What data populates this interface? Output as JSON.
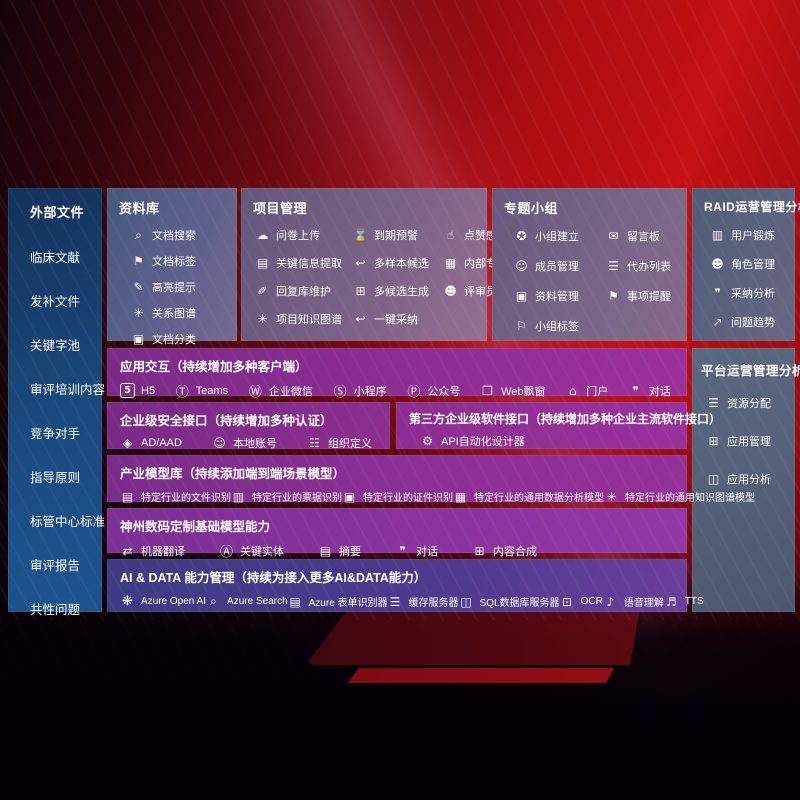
{
  "sidebar": {
    "title": "外部文件",
    "items": [
      "临床文献",
      "发补文件",
      "关键字池",
      "审评培训内容",
      "竞争对手",
      "指导原则",
      "标管中心标准",
      "审评报告",
      "共性问题"
    ]
  },
  "library": {
    "title": "资料库",
    "items": [
      {
        "glyph": "⌕",
        "label": "文档搜索"
      },
      {
        "glyph": "⚑",
        "label": "文档标签"
      },
      {
        "glyph": "✎",
        "label": "高亮提示"
      },
      {
        "glyph": "✳",
        "label": "关系图谱"
      },
      {
        "glyph": "▣",
        "label": "文档分类"
      }
    ]
  },
  "project": {
    "title": "项目管理",
    "items": [
      {
        "glyph": "☁",
        "label": "问卷上传"
      },
      {
        "glyph": "⌛",
        "label": "到期预警"
      },
      {
        "glyph": "☝",
        "label": "点赞感谢"
      },
      {
        "glyph": "▤",
        "label": "关键信息提取"
      },
      {
        "glyph": "↩",
        "label": "多样本候选"
      },
      {
        "glyph": "▦",
        "label": "内部专家排名"
      },
      {
        "glyph": "✐",
        "label": "回复库维护"
      },
      {
        "glyph": "⊞",
        "label": "多候选生成"
      },
      {
        "glyph": "☻",
        "label": "评审员画像"
      },
      {
        "glyph": "✳",
        "label": "项目知识图谱"
      },
      {
        "glyph": "↩",
        "label": "一键采纳"
      }
    ]
  },
  "topic": {
    "title": "专题小组",
    "items": [
      {
        "glyph": "✪",
        "label": "小组建立"
      },
      {
        "glyph": "✉",
        "label": "留言板"
      },
      {
        "glyph": "☺",
        "label": "成员管理"
      },
      {
        "glyph": "☰",
        "label": "代办列表"
      },
      {
        "glyph": "▣",
        "label": "资料管理"
      },
      {
        "glyph": "⚑",
        "label": "事项提醒"
      },
      {
        "glyph": "⚐",
        "label": "小组标签"
      }
    ]
  },
  "raid": {
    "title": "RAID运营管理分析",
    "items": [
      {
        "glyph": "▥",
        "label": "用户锻炼"
      },
      {
        "glyph": "☻",
        "label": "角色管理"
      },
      {
        "glyph": "❞",
        "label": "采纳分析"
      },
      {
        "glyph": "↗",
        "label": "问题趋势"
      }
    ]
  },
  "platform": {
    "title": "平台运营管理分析",
    "items": [
      {
        "glyph": "☰",
        "label": "资源分配"
      },
      {
        "glyph": "⊞",
        "label": "应用管理"
      },
      {
        "glyph": "◫",
        "label": "应用分析"
      }
    ]
  },
  "app_row": {
    "title": "应用交互（持续增加多种客户端）",
    "items": [
      {
        "glyph": "5",
        "label": "H5"
      },
      {
        "glyph": "Ⓣ",
        "label": "Teams"
      },
      {
        "glyph": "Ⓦ",
        "label": "企业微信"
      },
      {
        "glyph": "Ⓢ",
        "label": "小程序"
      },
      {
        "glyph": "Ⓟ",
        "label": "公众号"
      },
      {
        "glyph": "❐",
        "label": "Web飘窗"
      },
      {
        "glyph": "⌂",
        "label": "门户"
      },
      {
        "glyph": "❞",
        "label": "对话"
      }
    ]
  },
  "security_row": {
    "title": "企业级安全接口（持续增加多种认证）",
    "items": [
      {
        "glyph": "◈",
        "label": "AD/AAD"
      },
      {
        "glyph": "☺",
        "label": "本地账号"
      },
      {
        "glyph": "☷",
        "label": "组织定义"
      }
    ]
  },
  "thirdparty_row": {
    "title": "第三方企业级软件接口（持续增加多种企业主流软件接口）",
    "items": [
      {
        "glyph": "⚙",
        "label": "API自动化设计器"
      }
    ]
  },
  "industry_row": {
    "title": "产业模型库（持续添加端到端场景模型）",
    "items": [
      {
        "glyph": "▤",
        "label": "特定行业的文件识别"
      },
      {
        "glyph": "▥",
        "label": "特定行业的票据识别"
      },
      {
        "glyph": "▣",
        "label": "特定行业的证件识别"
      },
      {
        "glyph": "▦",
        "label": "特定行业的通用数据分析模型"
      },
      {
        "glyph": "✳",
        "label": "特定行业的通用知识图谱模型"
      }
    ]
  },
  "shenzhou_row": {
    "title": "神州数码定制基础模型能力",
    "items": [
      {
        "glyph": "⇄",
        "label": "机器翻译"
      },
      {
        "glyph": "Ⓐ",
        "label": "关键实体"
      },
      {
        "glyph": "▤",
        "label": "摘要"
      },
      {
        "glyph": "❞",
        "label": "对话"
      },
      {
        "glyph": "⊞",
        "label": "内容合成"
      }
    ]
  },
  "aidata_row": {
    "title": "AI & DATA 能力管理（持续为接入更多AI&DATA能力）",
    "items": [
      {
        "glyph": "❋",
        "label": "Azure Open AI"
      },
      {
        "glyph": "⌕",
        "label": "Azure Search"
      },
      {
        "glyph": "▤",
        "label": "Azure 表单识别器"
      },
      {
        "glyph": "☰",
        "label": "缓存服务器"
      },
      {
        "glyph": "◫",
        "label": "SQL数据库服务器"
      },
      {
        "glyph": "⊡",
        "label": "OCR"
      },
      {
        "glyph": "♪",
        "label": "语音理解"
      },
      {
        "glyph": "♬",
        "label": "TTS"
      }
    ]
  }
}
